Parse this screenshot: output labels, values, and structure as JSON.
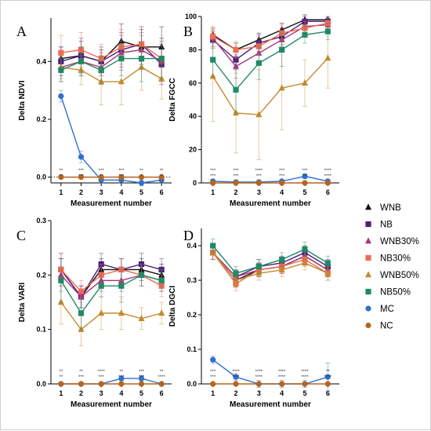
{
  "figure": {
    "legend": [
      {
        "name": "WNB",
        "color": "#111111",
        "marker": "triangle-up"
      },
      {
        "name": "NB",
        "color": "#4b1f7a",
        "marker": "square"
      },
      {
        "name": "WNB30%",
        "color": "#a8357a",
        "marker": "triangle-up"
      },
      {
        "name": "NB30%",
        "color": "#ef6a55",
        "marker": "square"
      },
      {
        "name": "WNB50%",
        "color": "#c48a2c",
        "marker": "triangle-up"
      },
      {
        "name": "NB50%",
        "color": "#1f8a64",
        "marker": "square"
      },
      {
        "name": "MC",
        "color": "#2f6fd0",
        "marker": "circle"
      },
      {
        "name": "NC",
        "color": "#b5651d",
        "marker": "circle"
      }
    ]
  },
  "chart_data": [
    {
      "panel": "A",
      "type": "line",
      "ylabel": "Delta NDVI",
      "xlabel": "Measurement number",
      "x": [
        1,
        2,
        3,
        4,
        5,
        6
      ],
      "ylim": [
        -0.02,
        0.55
      ],
      "yticks": [
        0.0,
        0.2,
        0.4
      ],
      "yticklabels": [
        "0.0",
        "0.2",
        "0.4"
      ],
      "zero_line": true,
      "significance_rows": [
        [
          "**",
          "***",
          "***",
          "***",
          "**",
          "**"
        ],
        [
          "**",
          "***",
          "**",
          "***",
          "*",
          "**"
        ]
      ],
      "series": [
        {
          "name": "WNB",
          "values": [
            0.41,
            0.42,
            0.4,
            0.47,
            0.45,
            0.45
          ],
          "err": [
            0.04,
            0.05,
            0.04,
            0.06,
            0.06,
            0.07
          ]
        },
        {
          "name": "NB",
          "values": [
            0.4,
            0.42,
            0.4,
            0.44,
            0.46,
            0.39
          ],
          "err": [
            0.05,
            0.06,
            0.05,
            0.06,
            0.06,
            0.07
          ]
        },
        {
          "name": "WNB30%",
          "values": [
            0.38,
            0.4,
            0.38,
            0.43,
            0.44,
            0.4
          ],
          "err": [
            0.05,
            0.05,
            0.05,
            0.06,
            0.06,
            0.07
          ]
        },
        {
          "name": "NB30%",
          "values": [
            0.43,
            0.44,
            0.41,
            0.45,
            0.46,
            0.41
          ],
          "err": [
            0.06,
            0.06,
            0.05,
            0.06,
            0.06,
            0.07
          ]
        },
        {
          "name": "WNB50%",
          "values": [
            0.38,
            0.37,
            0.33,
            0.33,
            0.38,
            0.34
          ],
          "err": [
            0.04,
            0.05,
            0.08,
            0.08,
            0.08,
            0.07
          ]
        },
        {
          "name": "NB50%",
          "values": [
            0.37,
            0.4,
            0.37,
            0.41,
            0.41,
            0.41
          ],
          "err": [
            0.04,
            0.05,
            0.05,
            0.06,
            0.08,
            0.07
          ]
        },
        {
          "name": "MC",
          "values": [
            0.28,
            0.07,
            -0.01,
            -0.01,
            -0.02,
            -0.01
          ],
          "err": [
            0.02,
            0.02,
            0.01,
            0.01,
            0.01,
            0.01
          ]
        },
        {
          "name": "NC",
          "values": [
            0.0,
            0.0,
            0.0,
            0.0,
            0.0,
            0.0
          ],
          "err": [
            0,
            0,
            0,
            0,
            0,
            0
          ]
        }
      ]
    },
    {
      "panel": "B",
      "type": "line",
      "ylabel": "Delta FGCC",
      "xlabel": "Measurement number",
      "x": [
        1,
        2,
        3,
        4,
        5,
        6
      ],
      "ylim": [
        0,
        100
      ],
      "yticks": [
        0,
        20,
        40,
        60,
        80,
        100
      ],
      "yticklabels": [
        "0",
        "20",
        "40",
        "60",
        "80",
        "100"
      ],
      "zero_line": false,
      "significance_rows": [
        [
          "***",
          "***",
          "****",
          "***",
          "***",
          "****"
        ],
        [
          "***",
          "***",
          "***",
          "***",
          "**",
          "****"
        ]
      ],
      "series": [
        {
          "name": "WNB",
          "values": [
            89,
            80,
            86,
            92,
            98,
            98
          ],
          "err": [
            4,
            4,
            4,
            4,
            3,
            2
          ]
        },
        {
          "name": "NB",
          "values": [
            86,
            74,
            84,
            88,
            97,
            97
          ],
          "err": [
            5,
            6,
            5,
            5,
            3,
            2
          ]
        },
        {
          "name": "WNB30%",
          "values": [
            87,
            70,
            78,
            86,
            94,
            95
          ],
          "err": [
            5,
            7,
            6,
            5,
            4,
            3
          ]
        },
        {
          "name": "NB30%",
          "values": [
            88,
            80,
            82,
            90,
            93,
            96
          ],
          "err": [
            6,
            5,
            5,
            5,
            4,
            3
          ]
        },
        {
          "name": "WNB50%",
          "values": [
            64,
            42,
            41,
            57,
            60,
            75
          ],
          "err": [
            27,
            24,
            27,
            25,
            14,
            18
          ]
        },
        {
          "name": "NB50%",
          "values": [
            74,
            56,
            72,
            80,
            89,
            91
          ],
          "err": [
            10,
            14,
            10,
            10,
            5,
            5
          ]
        },
        {
          "name": "MC",
          "values": [
            1,
            0.5,
            0.5,
            1,
            4,
            1
          ],
          "err": [
            1,
            0.5,
            0.5,
            1,
            1.5,
            1
          ]
        },
        {
          "name": "NC",
          "values": [
            0,
            0,
            0,
            0,
            0,
            0
          ],
          "err": [
            0,
            0,
            0,
            0,
            0,
            0
          ]
        }
      ]
    },
    {
      "panel": "C",
      "type": "line",
      "ylabel": "Delta VARI",
      "xlabel": "Measurement number",
      "x": [
        1,
        2,
        3,
        4,
        5,
        6
      ],
      "ylim": [
        0,
        0.3
      ],
      "yticks": [
        0.0,
        0.1,
        0.2,
        0.3
      ],
      "yticklabels": [
        "0.0",
        "0.1",
        "0.2",
        "0.3"
      ],
      "zero_line": false,
      "significance_rows": [
        [
          "**",
          "**",
          "****",
          "**",
          "***",
          "**"
        ],
        [
          "**",
          "***",
          "***",
          "***",
          "***",
          "****"
        ]
      ],
      "series": [
        {
          "name": "WNB",
          "values": [
            0.21,
            0.16,
            0.21,
            0.21,
            0.21,
            0.2
          ],
          "err": [
            0.02,
            0.02,
            0.02,
            0.02,
            0.02,
            0.02
          ]
        },
        {
          "name": "NB",
          "values": [
            0.21,
            0.16,
            0.22,
            0.21,
            0.22,
            0.21
          ],
          "err": [
            0.03,
            0.02,
            0.02,
            0.02,
            0.02,
            0.02
          ]
        },
        {
          "name": "WNB30%",
          "values": [
            0.2,
            0.16,
            0.19,
            0.19,
            0.2,
            0.19
          ],
          "err": [
            0.03,
            0.02,
            0.02,
            0.02,
            0.02,
            0.02
          ]
        },
        {
          "name": "NB30%",
          "values": [
            0.21,
            0.17,
            0.2,
            0.21,
            0.2,
            0.18
          ],
          "err": [
            0.03,
            0.02,
            0.02,
            0.02,
            0.02,
            0.02
          ]
        },
        {
          "name": "WNB50%",
          "values": [
            0.15,
            0.1,
            0.13,
            0.13,
            0.12,
            0.13
          ],
          "err": [
            0.04,
            0.03,
            0.03,
            0.03,
            0.02,
            0.02
          ]
        },
        {
          "name": "NB50%",
          "values": [
            0.19,
            0.13,
            0.18,
            0.18,
            0.2,
            0.19
          ],
          "err": [
            0.04,
            0.03,
            0.02,
            0.03,
            0.02,
            0.02
          ]
        },
        {
          "name": "MC",
          "values": [
            0.0,
            0.0,
            0.0,
            0.01,
            0.01,
            0.0
          ],
          "err": [
            0.003,
            0.003,
            0.003,
            0.004,
            0.005,
            0.003
          ]
        },
        {
          "name": "NC",
          "values": [
            0,
            0,
            0,
            0,
            0,
            0
          ],
          "err": [
            0,
            0,
            0,
            0,
            0,
            0
          ]
        }
      ]
    },
    {
      "panel": "D",
      "type": "line",
      "ylabel": "Delta DGCI",
      "xlabel": "Measurement number",
      "x": [
        1,
        2,
        3,
        4,
        5,
        6
      ],
      "ylim": [
        0,
        0.45
      ],
      "yticks": [
        0.0,
        0.1,
        0.2,
        0.3,
        0.4
      ],
      "yticklabels": [
        "0.0",
        "0.1",
        "0.2",
        "0.3",
        "0.4"
      ],
      "zero_line": false,
      "significance_rows": [
        [
          "***",
          "****",
          "****",
          "****",
          "****",
          "**"
        ],
        [
          "***",
          "****",
          "****",
          "****",
          "****",
          "****"
        ]
      ],
      "series": [
        {
          "name": "WNB",
          "values": [
            0.38,
            0.3,
            0.33,
            0.34,
            0.37,
            0.33
          ],
          "err": [
            0.02,
            0.02,
            0.02,
            0.02,
            0.02,
            0.02
          ]
        },
        {
          "name": "NB",
          "values": [
            0.38,
            0.31,
            0.34,
            0.35,
            0.38,
            0.34
          ],
          "err": [
            0.02,
            0.02,
            0.02,
            0.02,
            0.02,
            0.02
          ]
        },
        {
          "name": "WNB30%",
          "values": [
            0.38,
            0.31,
            0.33,
            0.34,
            0.37,
            0.33
          ],
          "err": [
            0.02,
            0.02,
            0.02,
            0.02,
            0.02,
            0.02
          ]
        },
        {
          "name": "NB30%",
          "values": [
            0.38,
            0.29,
            0.33,
            0.34,
            0.36,
            0.32
          ],
          "err": [
            0.02,
            0.02,
            0.02,
            0.02,
            0.02,
            0.02
          ]
        },
        {
          "name": "WNB50%",
          "values": [
            0.38,
            0.3,
            0.32,
            0.33,
            0.35,
            0.32
          ],
          "err": [
            0.02,
            0.02,
            0.02,
            0.02,
            0.02,
            0.02
          ]
        },
        {
          "name": "NB50%",
          "values": [
            0.4,
            0.32,
            0.34,
            0.36,
            0.39,
            0.35
          ],
          "err": [
            0.02,
            0.02,
            0.02,
            0.02,
            0.02,
            0.02
          ]
        },
        {
          "name": "MC",
          "values": [
            0.07,
            0.02,
            0.0,
            0.0,
            0.0,
            0.02
          ],
          "err": [
            0.01,
            0.01,
            0.01,
            0.01,
            0.01,
            0.04
          ]
        },
        {
          "name": "NC",
          "values": [
            0,
            0,
            0,
            0,
            0,
            0
          ],
          "err": [
            0,
            0,
            0,
            0,
            0,
            0
          ]
        }
      ]
    }
  ]
}
